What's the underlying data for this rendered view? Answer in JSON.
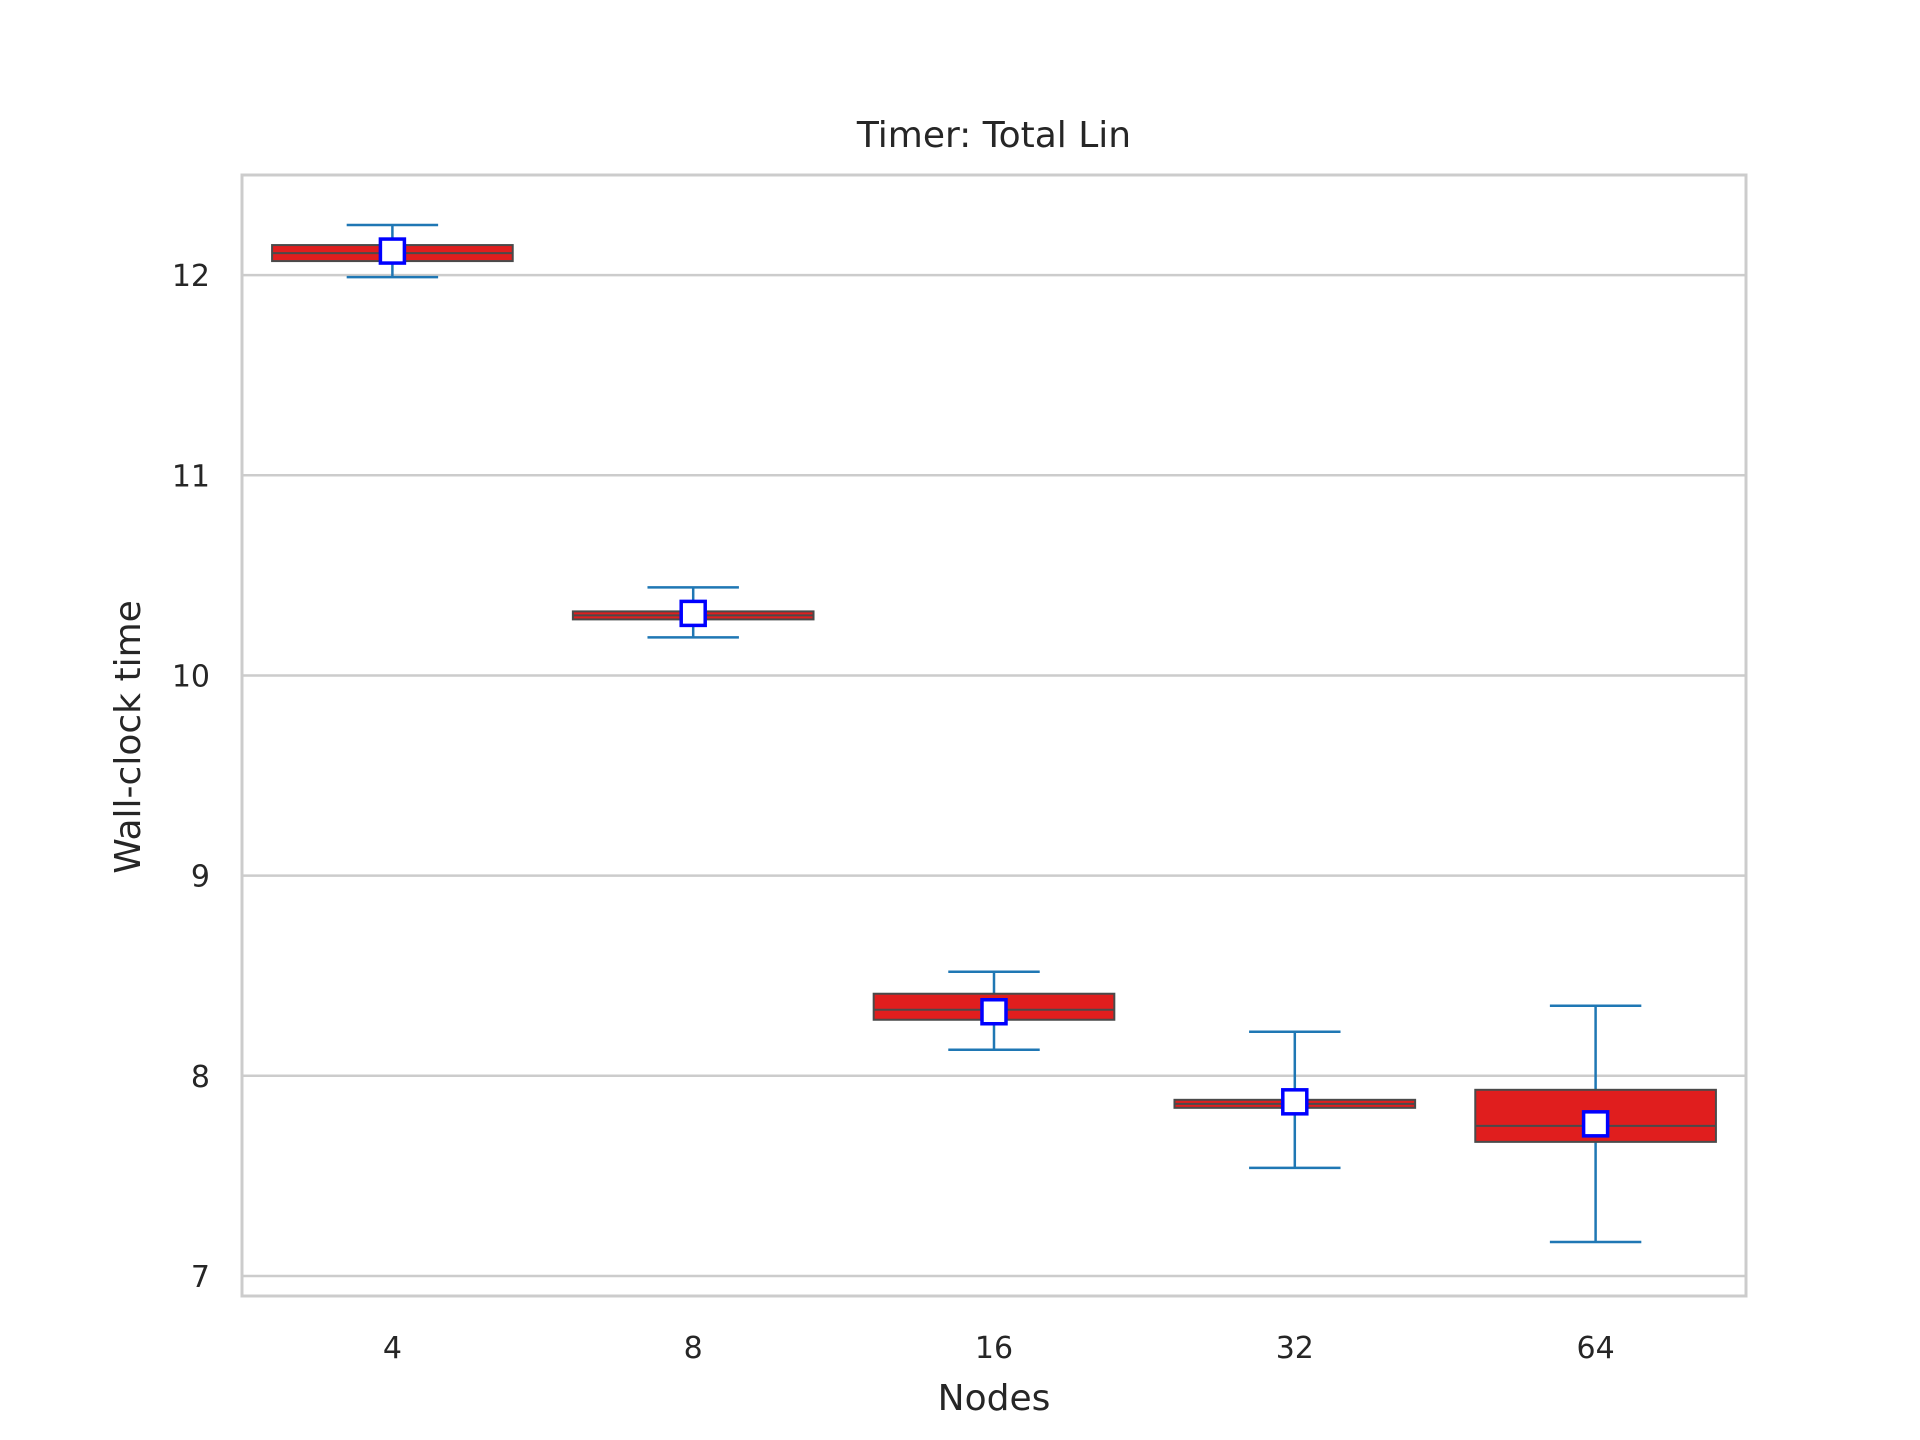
{
  "chart_data": {
    "type": "box",
    "title": "Timer: Total Lin",
    "xlabel": "Nodes",
    "ylabel": "Wall-clock time",
    "ylim": [
      6.9,
      12.5
    ],
    "yticks": [
      7,
      8,
      9,
      10,
      11,
      12
    ],
    "ytick_labels": [
      "7",
      "8",
      "9",
      "10",
      "11",
      "12"
    ],
    "grid": "horizontal",
    "categories": [
      "4",
      "8",
      "16",
      "32",
      "64"
    ],
    "boxes": [
      {
        "category": "4",
        "whisker_low": 11.99,
        "q1": 12.07,
        "median": 12.11,
        "q3": 12.15,
        "whisker_high": 12.25,
        "mean": 12.12
      },
      {
        "category": "8",
        "whisker_low": 10.19,
        "q1": 10.28,
        "median": 10.3,
        "q3": 10.32,
        "whisker_high": 10.44,
        "mean": 10.31
      },
      {
        "category": "16",
        "whisker_low": 8.13,
        "q1": 8.28,
        "median": 8.33,
        "q3": 8.41,
        "whisker_high": 8.52,
        "mean": 8.32
      },
      {
        "category": "32",
        "whisker_low": 7.54,
        "q1": 7.84,
        "median": 7.86,
        "q3": 7.88,
        "whisker_high": 8.22,
        "mean": 7.87
      },
      {
        "category": "64",
        "whisker_low": 7.17,
        "q1": 7.67,
        "median": 7.75,
        "q3": 7.93,
        "whisker_high": 8.35,
        "mean": 7.76
      }
    ],
    "colors": {
      "box_fill": "#e01e1e",
      "box_edge": "#4a4a4a",
      "whisker": "#1f77b4",
      "mean_marker_edge": "#0000ff",
      "mean_marker_fill": "#ffffff",
      "grid": "#cccccc",
      "frame": "#cccccc"
    }
  }
}
